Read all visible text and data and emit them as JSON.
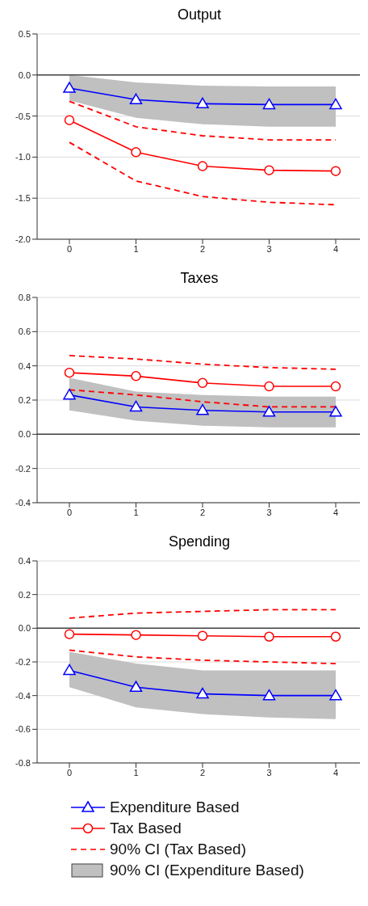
{
  "chart_data": [
    {
      "type": "line",
      "title": "Output",
      "categories": [
        "0",
        "1",
        "2",
        "3",
        "4"
      ],
      "ylim": [
        -2.0,
        0.5
      ],
      "yticks": [
        {
          "value": -2,
          "label": "-2.0"
        },
        {
          "value": -1.5,
          "label": "-1.5"
        },
        {
          "value": -1,
          "label": "-1.0"
        },
        {
          "value": -0.5,
          "label": "-0.5"
        },
        {
          "value": 0,
          "label": "0.0"
        },
        {
          "value": 0.5,
          "label": "0.5"
        }
      ],
      "grid": "y",
      "legend": false,
      "ref_lines": [
        {
          "axis": "y",
          "value": 0,
          "color": "#404040"
        }
      ],
      "series": [
        {
          "type": "line",
          "color": "#0000ff",
          "marker": "triangle",
          "line_style": "solid",
          "values": [
            -0.16,
            -0.3,
            -0.35,
            -0.36,
            -0.36
          ],
          "lower": [
            -0.31,
            -0.52,
            -0.6,
            -0.63,
            -0.63
          ],
          "upper": [
            0.0,
            -0.09,
            -0.13,
            -0.14,
            -0.14
          ]
        },
        {
          "type": "line",
          "color": "#ff0000",
          "marker": "circle",
          "line_style": "solid",
          "values": [
            -0.55,
            -0.94,
            -1.11,
            -1.16,
            -1.17
          ]
        },
        {
          "type": "line",
          "color": "#ff0000",
          "marker": "none",
          "line_style": "dashed",
          "values": [
            -0.32,
            -0.63,
            -0.74,
            -0.79,
            -0.79
          ]
        },
        {
          "type": "line",
          "color": "#ff0000",
          "marker": "none",
          "line_style": "dashed",
          "values": [
            -0.82,
            -1.29,
            -1.48,
            -1.55,
            -1.58
          ]
        }
      ]
    },
    {
      "type": "line",
      "title": "Taxes",
      "categories": [
        "0",
        "1",
        "2",
        "3",
        "4"
      ],
      "ylim": [
        -0.4,
        0.8
      ],
      "yticks": [
        {
          "value": -0.4,
          "label": "-0.4"
        },
        {
          "value": -0.2,
          "label": "-0.2"
        },
        {
          "value": 0,
          "label": "0.0"
        },
        {
          "value": 0.2,
          "label": "0.2"
        },
        {
          "value": 0.4,
          "label": "0.4"
        },
        {
          "value": 0.6,
          "label": "0.6"
        },
        {
          "value": 0.8,
          "label": "0.8"
        }
      ],
      "grid": "y",
      "legend": false,
      "ref_lines": [
        {
          "axis": "y",
          "value": 0,
          "color": "#404040"
        }
      ],
      "series": [
        {
          "type": "line",
          "color": "#0000ff",
          "marker": "triangle",
          "line_style": "solid",
          "values": [
            0.23,
            0.16,
            0.14,
            0.13,
            0.13
          ],
          "lower": [
            0.14,
            0.08,
            0.05,
            0.04,
            0.04
          ],
          "upper": [
            0.33,
            0.25,
            0.23,
            0.22,
            0.22
          ]
        },
        {
          "type": "line",
          "color": "#ff0000",
          "marker": "circle",
          "line_style": "solid",
          "values": [
            0.36,
            0.34,
            0.3,
            0.28,
            0.28
          ]
        },
        {
          "type": "line",
          "color": "#ff0000",
          "marker": "none",
          "line_style": "dashed",
          "values": [
            0.46,
            0.44,
            0.41,
            0.39,
            0.38
          ]
        },
        {
          "type": "line",
          "color": "#ff0000",
          "marker": "none",
          "line_style": "dashed",
          "values": [
            0.26,
            0.23,
            0.19,
            0.16,
            0.16
          ]
        }
      ]
    },
    {
      "type": "line",
      "title": "Spending",
      "categories": [
        "0",
        "1",
        "2",
        "3",
        "4"
      ],
      "ylim": [
        -0.8,
        0.4
      ],
      "yticks": [
        {
          "value": -0.8,
          "label": "-0.8"
        },
        {
          "value": -0.6,
          "label": "-0.6"
        },
        {
          "value": -0.4,
          "label": "-0.4"
        },
        {
          "value": -0.2,
          "label": "-0.2"
        },
        {
          "value": 0,
          "label": "0.0"
        },
        {
          "value": 0.2,
          "label": "0.2"
        },
        {
          "value": 0.4,
          "label": "0.4"
        }
      ],
      "grid": "y",
      "legend": "bottom",
      "ref_lines": [
        {
          "axis": "y",
          "value": 0,
          "color": "#404040"
        }
      ],
      "annotations": [
        "90% CI (Expenditure Based)"
      ],
      "series": [
        {
          "type": "line",
          "name": "Expenditure Based",
          "color": "#0000ff",
          "marker": "triangle",
          "line_style": "solid",
          "values": [
            -0.25,
            -0.35,
            -0.39,
            -0.4,
            -0.4
          ],
          "lower": [
            -0.35,
            -0.47,
            -0.51,
            -0.53,
            -0.54
          ],
          "upper": [
            -0.14,
            -0.21,
            -0.25,
            -0.25,
            -0.25
          ]
        },
        {
          "type": "line",
          "name": "Tax Based",
          "color": "#ff0000",
          "marker": "circle",
          "line_style": "solid",
          "values": [
            -0.035,
            -0.04,
            -0.045,
            -0.05,
            -0.05
          ]
        },
        {
          "type": "line",
          "name": "90% CI (Tax Based)",
          "color": "#ff0000",
          "marker": "none",
          "line_style": "dashed",
          "values": [
            0.06,
            0.09,
            0.1,
            0.11,
            0.11
          ]
        },
        {
          "type": "line",
          "color": "#ff0000",
          "marker": "none",
          "line_style": "dashed",
          "values": [
            -0.13,
            -0.17,
            -0.19,
            -0.2,
            -0.21
          ]
        }
      ]
    }
  ]
}
